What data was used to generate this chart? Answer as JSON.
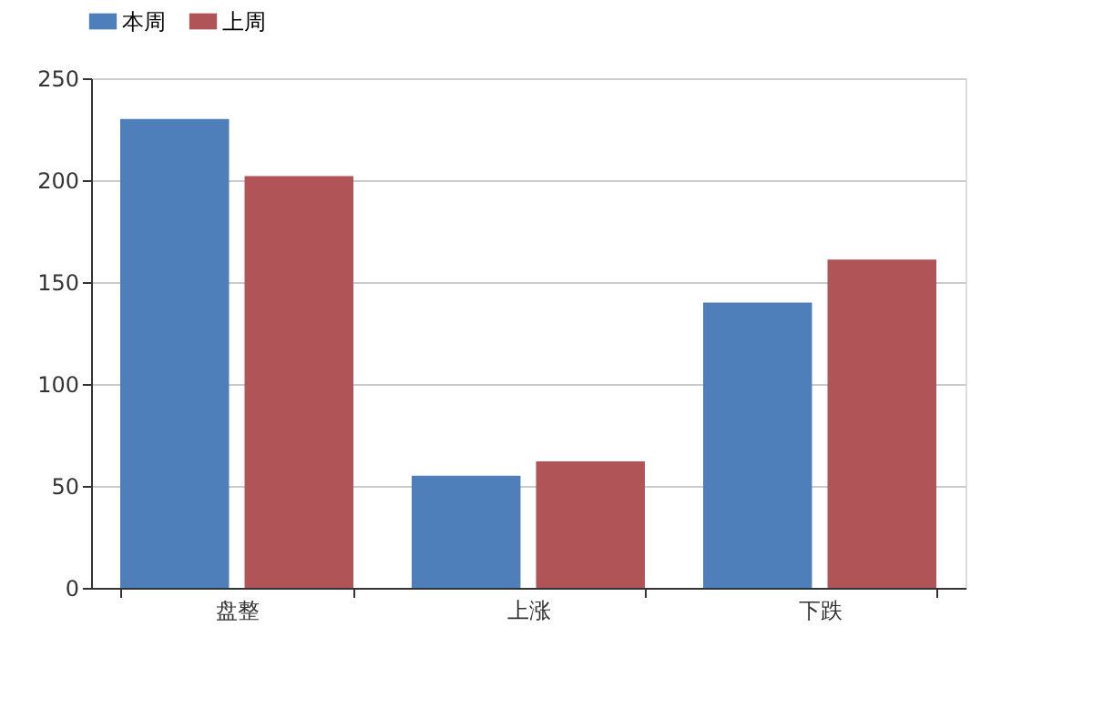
{
  "chart_data": {
    "type": "bar",
    "categories": [
      "盘整",
      "上涨",
      "下跌"
    ],
    "series": [
      {
        "name": "本周",
        "color": "#4e7fbb",
        "values": [
          230,
          55,
          140
        ]
      },
      {
        "name": "上周",
        "color": "#b05457",
        "values": [
          202,
          62,
          161
        ]
      }
    ],
    "ylim": [
      0,
      250
    ],
    "yticks": [
      0,
      50,
      100,
      150,
      200,
      250
    ],
    "grid": "y",
    "legend": "top"
  }
}
